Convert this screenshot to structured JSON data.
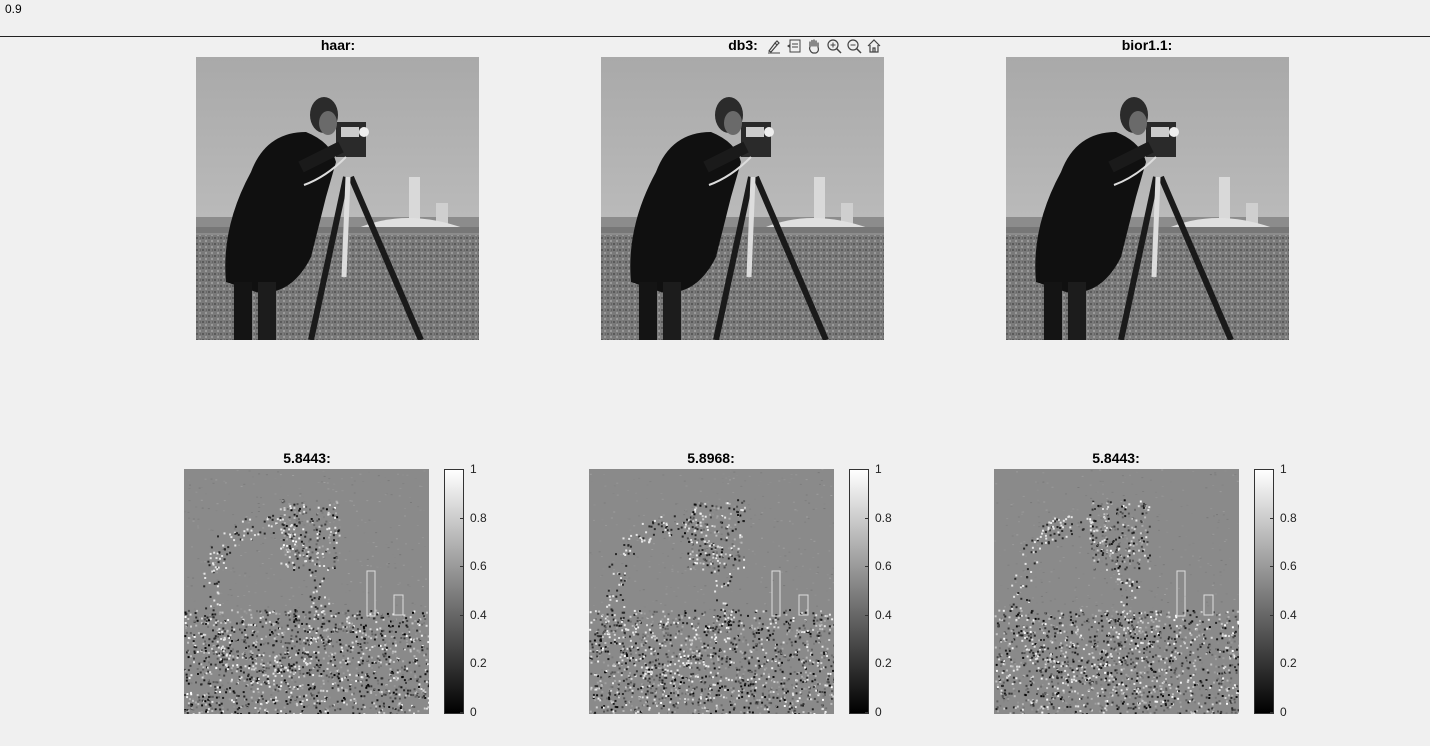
{
  "top_value": "0.9",
  "plots": [
    {
      "title": "haar:",
      "diff_title": "5.8443:"
    },
    {
      "title": "db3:",
      "diff_title": "5.8968:"
    },
    {
      "title": "bior1.1:",
      "diff_title": "5.8443:"
    }
  ],
  "colorbar_ticks": [
    "1",
    "0.8",
    "0.6",
    "0.4",
    "0.2",
    "0"
  ],
  "toolbar": [
    {
      "name": "brush-icon"
    },
    {
      "name": "data-tips-icon"
    },
    {
      "name": "pan-hand-icon"
    },
    {
      "name": "zoom-in-icon"
    },
    {
      "name": "zoom-out-icon"
    },
    {
      "name": "home-icon"
    }
  ]
}
